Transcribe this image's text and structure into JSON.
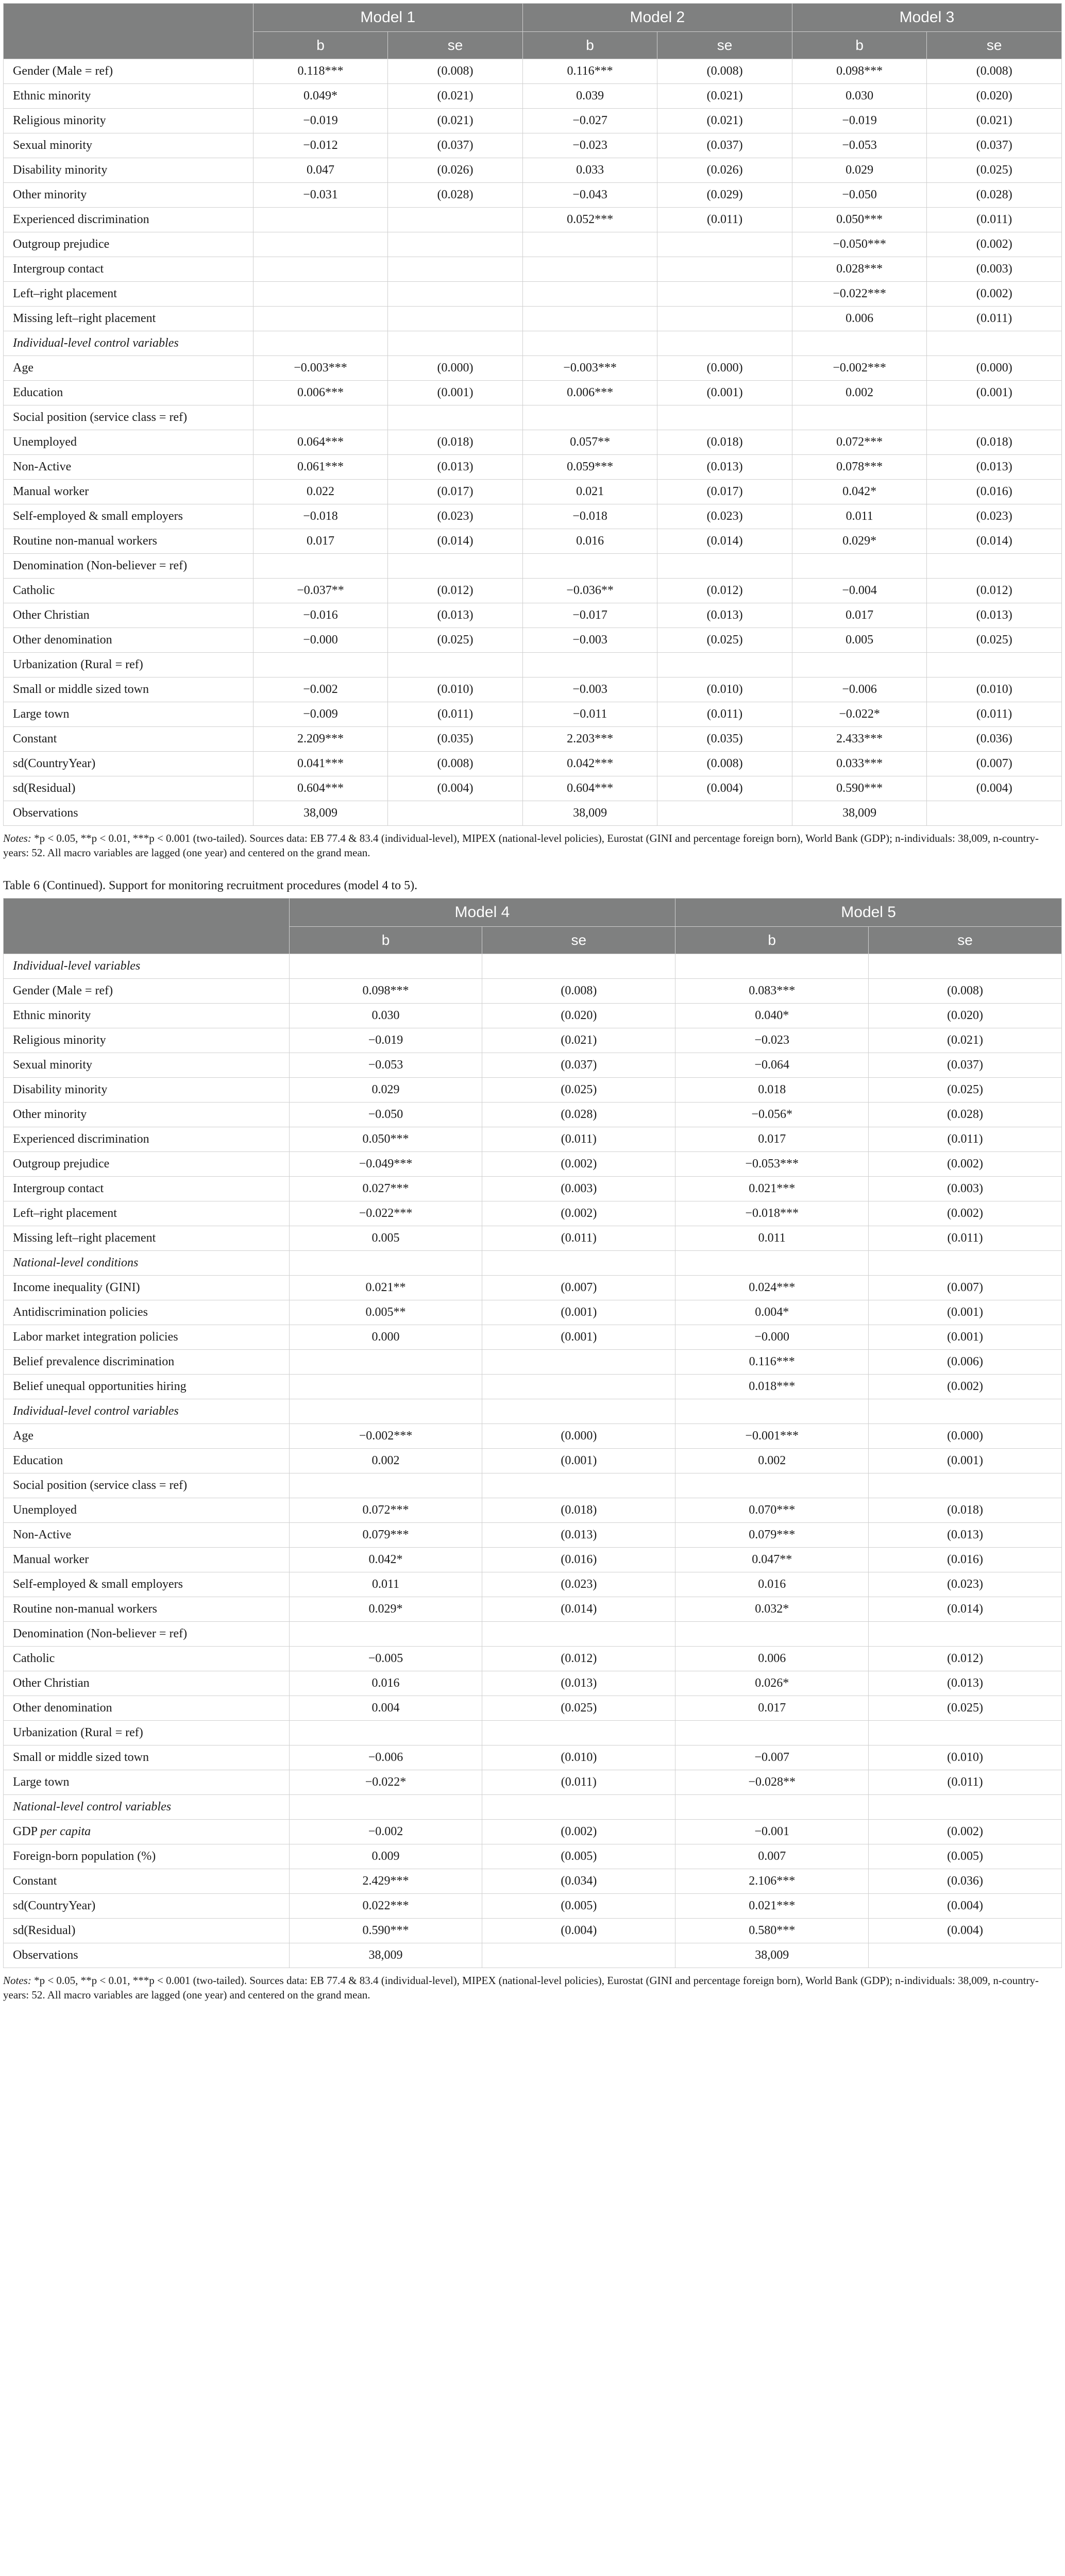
{
  "table1": {
    "headers": {
      "model1": "Model 1",
      "model2": "Model 2",
      "model3": "Model 3",
      "b": "b",
      "se": "se"
    },
    "rows": [
      {
        "label": "Gender (Male = ref)",
        "m1b": "0.118***",
        "m1se": "(0.008)",
        "m2b": "0.116***",
        "m2se": "(0.008)",
        "m3b": "0.098***",
        "m3se": "(0.008)"
      },
      {
        "label": "Ethnic minority",
        "m1b": "0.049*",
        "m1se": "(0.021)",
        "m2b": "0.039",
        "m2se": "(0.021)",
        "m3b": "0.030",
        "m3se": "(0.020)"
      },
      {
        "label": "Religious minority",
        "m1b": "−0.019",
        "m1se": "(0.021)",
        "m2b": "−0.027",
        "m2se": "(0.021)",
        "m3b": "−0.019",
        "m3se": "(0.021)"
      },
      {
        "label": "Sexual minority",
        "m1b": "−0.012",
        "m1se": "(0.037)",
        "m2b": "−0.023",
        "m2se": "(0.037)",
        "m3b": "−0.053",
        "m3se": "(0.037)"
      },
      {
        "label": "Disability minority",
        "m1b": "0.047",
        "m1se": "(0.026)",
        "m2b": "0.033",
        "m2se": "(0.026)",
        "m3b": "0.029",
        "m3se": "(0.025)"
      },
      {
        "label": "Other minority",
        "m1b": "−0.031",
        "m1se": "(0.028)",
        "m2b": "−0.043",
        "m2se": "(0.029)",
        "m3b": "−0.050",
        "m3se": "(0.028)"
      },
      {
        "label": "Experienced discrimination",
        "m1b": "",
        "m1se": "",
        "m2b": "0.052***",
        "m2se": "(0.011)",
        "m3b": "0.050***",
        "m3se": "(0.011)"
      },
      {
        "label": "Outgroup prejudice",
        "m1b": "",
        "m1se": "",
        "m2b": "",
        "m2se": "",
        "m3b": "−0.050***",
        "m3se": "(0.002)"
      },
      {
        "label": "Intergroup contact",
        "m1b": "",
        "m1se": "",
        "m2b": "",
        "m2se": "",
        "m3b": "0.028***",
        "m3se": "(0.003)"
      },
      {
        "label": "Left–right placement",
        "m1b": "",
        "m1se": "",
        "m2b": "",
        "m2se": "",
        "m3b": "−0.022***",
        "m3se": "(0.002)"
      },
      {
        "label": "Missing left–right placement",
        "m1b": "",
        "m1se": "",
        "m2b": "",
        "m2se": "",
        "m3b": "0.006",
        "m3se": "(0.011)"
      },
      {
        "label": "Individual-level control variables",
        "italic": true
      },
      {
        "label": "Age",
        "m1b": "−0.003***",
        "m1se": "(0.000)",
        "m2b": "−0.003***",
        "m2se": "(0.000)",
        "m3b": "−0.002***",
        "m3se": "(0.000)"
      },
      {
        "label": "Education",
        "m1b": "0.006***",
        "m1se": "(0.001)",
        "m2b": "0.006***",
        "m2se": "(0.001)",
        "m3b": "0.002",
        "m3se": "(0.001)"
      },
      {
        "label": "Social position (service class = ref)"
      },
      {
        "label": "Unemployed",
        "m1b": "0.064***",
        "m1se": "(0.018)",
        "m2b": "0.057**",
        "m2se": "(0.018)",
        "m3b": "0.072***",
        "m3se": "(0.018)"
      },
      {
        "label": "Non-Active",
        "m1b": "0.061***",
        "m1se": "(0.013)",
        "m2b": "0.059***",
        "m2se": "(0.013)",
        "m3b": "0.078***",
        "m3se": "(0.013)"
      },
      {
        "label": "Manual worker",
        "m1b": "0.022",
        "m1se": "(0.017)",
        "m2b": "0.021",
        "m2se": "(0.017)",
        "m3b": "0.042*",
        "m3se": "(0.016)"
      },
      {
        "label": "Self-employed & small employers",
        "m1b": "−0.018",
        "m1se": "(0.023)",
        "m2b": "−0.018",
        "m2se": "(0.023)",
        "m3b": "0.011",
        "m3se": "(0.023)"
      },
      {
        "label": "Routine non-manual workers",
        "m1b": "0.017",
        "m1se": "(0.014)",
        "m2b": "0.016",
        "m2se": "(0.014)",
        "m3b": "0.029*",
        "m3se": "(0.014)"
      },
      {
        "label": "Denomination (Non-believer = ref)"
      },
      {
        "label": "Catholic",
        "m1b": "−0.037**",
        "m1se": "(0.012)",
        "m2b": "−0.036**",
        "m2se": "(0.012)",
        "m3b": "−0.004",
        "m3se": "(0.012)"
      },
      {
        "label": "Other Christian",
        "m1b": "−0.016",
        "m1se": "(0.013)",
        "m2b": "−0.017",
        "m2se": "(0.013)",
        "m3b": "0.017",
        "m3se": "(0.013)"
      },
      {
        "label": "Other denomination",
        "m1b": "−0.000",
        "m1se": "(0.025)",
        "m2b": "−0.003",
        "m2se": "(0.025)",
        "m3b": "0.005",
        "m3se": "(0.025)"
      },
      {
        "label": "Urbanization (Rural = ref)"
      },
      {
        "label": "Small or middle sized town",
        "m1b": "−0.002",
        "m1se": "(0.010)",
        "m2b": "−0.003",
        "m2se": "(0.010)",
        "m3b": "−0.006",
        "m3se": "(0.010)"
      },
      {
        "label": "Large town",
        "m1b": "−0.009",
        "m1se": "(0.011)",
        "m2b": "−0.011",
        "m2se": "(0.011)",
        "m3b": "−0.022*",
        "m3se": "(0.011)"
      },
      {
        "label": "Constant",
        "m1b": "2.209***",
        "m1se": "(0.035)",
        "m2b": "2.203***",
        "m2se": "(0.035)",
        "m3b": "2.433***",
        "m3se": "(0.036)"
      },
      {
        "label": "sd(CountryYear)",
        "m1b": "0.041***",
        "m1se": "(0.008)",
        "m2b": "0.042***",
        "m2se": "(0.008)",
        "m3b": "0.033***",
        "m3se": "(0.007)"
      },
      {
        "label": "sd(Residual)",
        "m1b": "0.604***",
        "m1se": "(0.004)",
        "m2b": "0.604***",
        "m2se": "(0.004)",
        "m3b": "0.590***",
        "m3se": "(0.004)"
      },
      {
        "label": "Observations",
        "m1b": "38,009",
        "m1se": "",
        "m2b": "38,009",
        "m2se": "",
        "m3b": "38,009",
        "m3se": ""
      }
    ]
  },
  "notes1_prefix": "Notes: ",
  "notes1_body": "*p < 0.05, **p < 0.01, ***p < 0.001 (two-tailed). Sources data: EB 77.4 & 83.4 (individual-level), MIPEX (national-level policies), Eurostat (GINI and percentage foreign born), World Bank (GDP); n-individuals: 38,009, n-country-years: 52. All macro variables are lagged (one year) and centered on the grand mean.",
  "caption2": "Table 6 (Continued). Support for monitoring recruitment procedures (model 4 to 5).",
  "table2": {
    "headers": {
      "model4": "Model 4",
      "model5": "Model 5",
      "b": "b",
      "se": "se"
    },
    "rows": [
      {
        "label": "Individual-level variables",
        "italic": true
      },
      {
        "label": "Gender (Male = ref)",
        "m4b": "0.098***",
        "m4se": "(0.008)",
        "m5b": "0.083***",
        "m5se": "(0.008)"
      },
      {
        "label": "Ethnic minority",
        "m4b": "0.030",
        "m4se": "(0.020)",
        "m5b": "0.040*",
        "m5se": "(0.020)"
      },
      {
        "label": "Religious minority",
        "m4b": "−0.019",
        "m4se": "(0.021)",
        "m5b": "−0.023",
        "m5se": "(0.021)"
      },
      {
        "label": "Sexual minority",
        "m4b": "−0.053",
        "m4se": "(0.037)",
        "m5b": "−0.064",
        "m5se": "(0.037)"
      },
      {
        "label": "Disability minority",
        "m4b": "0.029",
        "m4se": "(0.025)",
        "m5b": "0.018",
        "m5se": "(0.025)"
      },
      {
        "label": "Other minority",
        "m4b": "−0.050",
        "m4se": "(0.028)",
        "m5b": "−0.056*",
        "m5se": "(0.028)"
      },
      {
        "label": "Experienced discrimination",
        "m4b": "0.050***",
        "m4se": "(0.011)",
        "m5b": "0.017",
        "m5se": "(0.011)"
      },
      {
        "label": "Outgroup prejudice",
        "m4b": "−0.049***",
        "m4se": "(0.002)",
        "m5b": "−0.053***",
        "m5se": "(0.002)"
      },
      {
        "label": "Intergroup contact",
        "m4b": "0.027***",
        "m4se": "(0.003)",
        "m5b": "0.021***",
        "m5se": "(0.003)"
      },
      {
        "label": "Left–right placement",
        "m4b": "−0.022***",
        "m4se": "(0.002)",
        "m5b": "−0.018***",
        "m5se": "(0.002)"
      },
      {
        "label": "Missing left–right placement",
        "m4b": "0.005",
        "m4se": "(0.011)",
        "m5b": "0.011",
        "m5se": "(0.011)"
      },
      {
        "label": "National-level conditions",
        "italic": true
      },
      {
        "label": "Income inequality (GINI)",
        "m4b": "0.021**",
        "m4se": "(0.007)",
        "m5b": "0.024***",
        "m5se": "(0.007)"
      },
      {
        "label": "Antidiscrimination policies",
        "m4b": "0.005**",
        "m4se": "(0.001)",
        "m5b": "0.004*",
        "m5se": "(0.001)"
      },
      {
        "label": "Labor market integration policies",
        "m4b": "0.000",
        "m4se": "(0.001)",
        "m5b": "−0.000",
        "m5se": "(0.001)"
      },
      {
        "label": "Belief prevalence discrimination",
        "m4b": "",
        "m4se": "",
        "m5b": "0.116***",
        "m5se": "(0.006)"
      },
      {
        "label": "Belief unequal opportunities hiring",
        "m4b": "",
        "m4se": "",
        "m5b": "0.018***",
        "m5se": "(0.002)"
      },
      {
        "label": "Individual-level control variables",
        "italic": true
      },
      {
        "label": "Age",
        "m4b": "−0.002***",
        "m4se": "(0.000)",
        "m5b": "−0.001***",
        "m5se": "(0.000)"
      },
      {
        "label": "Education",
        "m4b": "0.002",
        "m4se": "(0.001)",
        "m5b": "0.002",
        "m5se": "(0.001)"
      },
      {
        "label": "Social position (service class = ref)"
      },
      {
        "label": "Unemployed",
        "m4b": "0.072***",
        "m4se": "(0.018)",
        "m5b": "0.070***",
        "m5se": "(0.018)"
      },
      {
        "label": "Non-Active",
        "m4b": "0.079***",
        "m4se": "(0.013)",
        "m5b": "0.079***",
        "m5se": "(0.013)"
      },
      {
        "label": "Manual worker",
        "m4b": "0.042*",
        "m4se": "(0.016)",
        "m5b": "0.047**",
        "m5se": "(0.016)"
      },
      {
        "label": "Self-employed & small employers",
        "m4b": "0.011",
        "m4se": "(0.023)",
        "m5b": "0.016",
        "m5se": "(0.023)"
      },
      {
        "label": "Routine non-manual workers",
        "m4b": "0.029*",
        "m4se": "(0.014)",
        "m5b": "0.032*",
        "m5se": "(0.014)"
      },
      {
        "label": "Denomination (Non-believer = ref)"
      },
      {
        "label": "Catholic",
        "m4b": "−0.005",
        "m4se": "(0.012)",
        "m5b": "0.006",
        "m5se": "(0.012)"
      },
      {
        "label": "Other Christian",
        "m4b": "0.016",
        "m4se": "(0.013)",
        "m5b": "0.026*",
        "m5se": "(0.013)"
      },
      {
        "label": "Other denomination",
        "m4b": "0.004",
        "m4se": "(0.025)",
        "m5b": "0.017",
        "m5se": "(0.025)"
      },
      {
        "label": "Urbanization (Rural = ref)"
      },
      {
        "label": "Small or middle sized town",
        "m4b": "−0.006",
        "m4se": "(0.010)",
        "m5b": "−0.007",
        "m5se": "(0.010)"
      },
      {
        "label": "Large town",
        "m4b": "−0.022*",
        "m4se": "(0.011)",
        "m5b": "−0.028**",
        "m5se": "(0.011)"
      },
      {
        "label": "National-level control variables",
        "italic": true
      },
      {
        "label": "GDP per capita",
        "labelHtml": "GDP <i>per capita</i>",
        "m4b": "−0.002",
        "m4se": "(0.002)",
        "m5b": "−0.001",
        "m5se": "(0.002)"
      },
      {
        "label": "Foreign-born population (%)",
        "m4b": "0.009",
        "m4se": "(0.005)",
        "m5b": "0.007",
        "m5se": "(0.005)"
      },
      {
        "label": "Constant",
        "m4b": "2.429***",
        "m4se": "(0.034)",
        "m5b": "2.106***",
        "m5se": "(0.036)"
      },
      {
        "label": "sd(CountryYear)",
        "m4b": "0.022***",
        "m4se": "(0.005)",
        "m5b": "0.021***",
        "m5se": "(0.004)"
      },
      {
        "label": "sd(Residual)",
        "m4b": "0.590***",
        "m4se": "(0.004)",
        "m5b": "0.580***",
        "m5se": "(0.004)"
      },
      {
        "label": "Observations",
        "m4b": "38,009",
        "m4se": "",
        "m5b": "38,009",
        "m5se": ""
      }
    ]
  },
  "notes2_prefix": "Notes: ",
  "notes2_body": "*p < 0.05, **p < 0.01, ***p < 0.001 (two-tailed). Sources data: EB 77.4 & 83.4 (individual-level), MIPEX (national-level policies), Eurostat (GINI and percentage foreign born), World Bank (GDP); n-individuals: 38,009, n-country-years: 52. All macro variables are lagged (one year) and centered on the grand mean.",
  "colors": {
    "header_bg": "#7f8080",
    "header_fg": "#ffffff",
    "border": "#d0d0d0",
    "text": "#1a1a1a"
  }
}
